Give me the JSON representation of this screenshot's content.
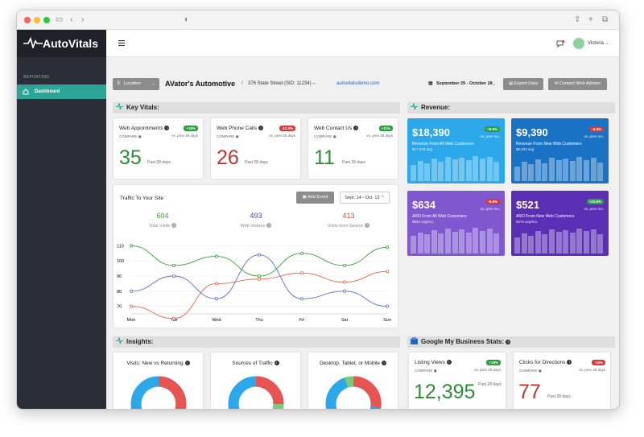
{
  "topbar": {
    "user": "Victoria"
  },
  "sidebar": {
    "brand": "AutoVitals",
    "section": "REPORTING",
    "nav": "Dashboard"
  },
  "header": {
    "location_label": "Location",
    "shop_name": "AVator's Automotive",
    "separator": "/",
    "address": "376 State Street (SID: 11234) –",
    "link": "autovitalsdemo.com",
    "date_range": "September 29 - October 28",
    "export": "Export Data",
    "contact": "Contact Web Adviser"
  },
  "key_vitals": {
    "title": "Key Vitals:",
    "cards": [
      {
        "title": "Web Appointments",
        "compare": "COMPARE",
        "badge": "+18%",
        "badge_color": "#2a9d3e",
        "vs": "vs. prev 28 days",
        "value": "35",
        "value_color": "#2f8c38",
        "past": "Past 28 days"
      },
      {
        "title": "Web Phone Calls",
        "compare": "COMPARE",
        "badge": "-12.4%",
        "badge_color": "#d13b3b",
        "vs": "vs. prev 28 days",
        "value": "26",
        "value_color": "#c9322f",
        "past": "Past 28 days"
      },
      {
        "title": "Web Contact Us",
        "compare": "COMPARE",
        "badge": "+11%",
        "badge_color": "#2a9d3e",
        "vs": "vs. prev 28 days",
        "value": "11",
        "value_color": "#2f8c38",
        "past": "Past 28 days"
      }
    ]
  },
  "revenue": {
    "title": "Revenue:",
    "cards": [
      {
        "value": "$18,390",
        "label": "Revenue From All Web Customers",
        "sub": "$17,578 avg",
        "badge": "+8.6%",
        "badge_color": "#2a9d3e",
        "vs": "vs. prev mo.",
        "color": "#2ba7ea"
      },
      {
        "value": "$9,390",
        "label": "Revenue From New Web Customers",
        "sub": "$8,934 avg",
        "badge": "-4.3%",
        "badge_color": "#d13b3b",
        "vs": "vs. prev mo.",
        "color": "#1a72c4"
      },
      {
        "value": "$634",
        "label": "ARO From All Web Customers",
        "sub": "$694 avg/mo.",
        "badge": "-8.6%",
        "badge_color": "#d13b3b",
        "vs": "vs. prev mo.",
        "color": "#7f58cf"
      },
      {
        "value": "$521",
        "label": "ARO From New Web Customers",
        "sub": "$470 avg/mo.",
        "badge": "+22.6%",
        "badge_color": "#2a9d3e",
        "vs": "vs. prev mo.",
        "color": "#5a2fb4"
      }
    ]
  },
  "traffic": {
    "title": "Traffic To Your Site",
    "add_event": "Add Event",
    "range": "Sept. 14 - Oct. 13",
    "stats": [
      {
        "value": "604",
        "label": "Total Visits",
        "color": "#3aa03a"
      },
      {
        "value": "493",
        "label": "Web Visitors",
        "color": "#4b4bb0"
      },
      {
        "value": "413",
        "label": "Visits from Search",
        "color": "#d24a3a"
      }
    ]
  },
  "chart_data": {
    "type": "line",
    "categories": [
      "Mon",
      "Tue",
      "Wed",
      "Thu",
      "Fri",
      "Sat",
      "Sun"
    ],
    "yticks": [
      70,
      80,
      90,
      100,
      110
    ],
    "ylim": [
      65,
      115
    ],
    "series": [
      {
        "color": "#3aa03a",
        "values": [
          110,
          97,
          103,
          90,
          105,
          97,
          109
        ]
      },
      {
        "color": "#5a6fc8",
        "values": [
          80,
          90,
          75,
          104,
          75,
          80,
          70
        ]
      },
      {
        "color": "#e8664a",
        "values": [
          70,
          62,
          85,
          88,
          92,
          86,
          93
        ]
      }
    ]
  },
  "insights": {
    "title": "Insights:",
    "cards": [
      {
        "title": "Visits: New vs Returning"
      },
      {
        "title": "Sources of Traffic"
      },
      {
        "title": "Desktop, Tablet, or Mobile"
      }
    ]
  },
  "gmb": {
    "title": "Google My Business Stats:",
    "cards": [
      {
        "title": "Listing Views",
        "compare": "COMPARE",
        "badge": "+18%",
        "badge_color": "#2a9d3e",
        "vs": "vs. prev 28 days",
        "value": "12,395",
        "value_color": "#2f8c38",
        "past": "Past 28 days"
      },
      {
        "title": "Clicks for Directions",
        "compare": "COMPARE",
        "badge": "-10%",
        "badge_color": "#d13b3b",
        "vs": "vs. prev 28 days",
        "value": "77",
        "value_color": "#c9322f",
        "past": "Past 28 days"
      }
    ]
  }
}
